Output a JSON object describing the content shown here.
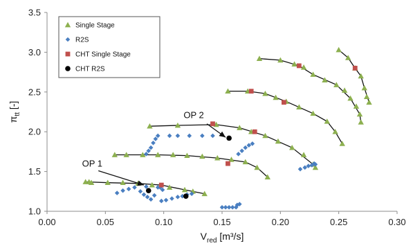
{
  "chart_data": {
    "type": "scatter",
    "title": "",
    "xlabel": {
      "base": "V",
      "sub": "red",
      "unit": " [m³/s]"
    },
    "ylabel": {
      "base": "π",
      "sub": "tt",
      "unit": " [-]"
    },
    "xlim": [
      0,
      0.3
    ],
    "ylim": [
      1.0,
      3.5
    ],
    "xticks": [
      "0.00",
      "0.05",
      "0.10",
      "0.15",
      "0.20",
      "0.25",
      "0.30"
    ],
    "yticks": [
      "1.0",
      "1.5",
      "2.0",
      "2.5",
      "3.0",
      "3.5"
    ],
    "grid": false,
    "legend_position": "top-left",
    "series": [
      {
        "name": "Single Stage",
        "marker": "triangle",
        "color": "#8db050",
        "points": [
          [
            0.033,
            1.37
          ],
          [
            0.036,
            1.37
          ],
          [
            0.038,
            1.36
          ],
          [
            0.052,
            1.36
          ],
          [
            0.065,
            1.36
          ],
          [
            0.078,
            1.35
          ],
          [
            0.09,
            1.33
          ],
          [
            0.105,
            1.3
          ],
          [
            0.118,
            1.27
          ],
          [
            0.125,
            1.25
          ],
          [
            0.135,
            1.22
          ],
          [
            0.058,
            1.71
          ],
          [
            0.068,
            1.71
          ],
          [
            0.082,
            1.71
          ],
          [
            0.095,
            1.71
          ],
          [
            0.108,
            1.71
          ],
          [
            0.12,
            1.7
          ],
          [
            0.133,
            1.69
          ],
          [
            0.146,
            1.67
          ],
          [
            0.158,
            1.65
          ],
          [
            0.17,
            1.62
          ],
          [
            0.18,
            1.55
          ],
          [
            0.189,
            1.43
          ],
          [
            0.088,
            2.07
          ],
          [
            0.112,
            2.08
          ],
          [
            0.145,
            2.09
          ],
          [
            0.165,
            2.05
          ],
          [
            0.175,
            2.0
          ],
          [
            0.187,
            1.95
          ],
          [
            0.198,
            1.88
          ],
          [
            0.21,
            1.8
          ],
          [
            0.22,
            1.71
          ],
          [
            0.228,
            1.59
          ],
          [
            0.23,
            1.55
          ],
          [
            0.155,
            2.51
          ],
          [
            0.172,
            2.51
          ],
          [
            0.187,
            2.48
          ],
          [
            0.196,
            2.43
          ],
          [
            0.205,
            2.38
          ],
          [
            0.216,
            2.31
          ],
          [
            0.228,
            2.23
          ],
          [
            0.24,
            2.13
          ],
          [
            0.247,
            2.0
          ],
          [
            0.253,
            1.85
          ],
          [
            0.182,
            2.92
          ],
          [
            0.2,
            2.9
          ],
          [
            0.212,
            2.85
          ],
          [
            0.22,
            2.81
          ],
          [
            0.228,
            2.72
          ],
          [
            0.238,
            2.65
          ],
          [
            0.248,
            2.59
          ],
          [
            0.255,
            2.52
          ],
          [
            0.26,
            2.42
          ],
          [
            0.265,
            2.32
          ],
          [
            0.268,
            2.22
          ],
          [
            0.269,
            2.12
          ],
          [
            0.25,
            3.03
          ],
          [
            0.258,
            2.93
          ],
          [
            0.264,
            2.8
          ],
          [
            0.269,
            2.7
          ],
          [
            0.272,
            2.55
          ],
          [
            0.274,
            2.44
          ],
          [
            0.276,
            2.37
          ]
        ]
      },
      {
        "name": "R2S",
        "marker": "diamond",
        "color": "#4a7fc1",
        "points": [
          [
            0.08,
            1.25
          ],
          [
            0.083,
            1.21
          ],
          [
            0.086,
            1.18
          ],
          [
            0.089,
            1.15
          ],
          [
            0.092,
            1.2
          ],
          [
            0.095,
            1.3
          ],
          [
            0.097,
            1.3
          ],
          [
            0.099,
            1.27
          ],
          [
            0.06,
            1.23
          ],
          [
            0.065,
            1.26
          ],
          [
            0.07,
            1.28
          ],
          [
            0.075,
            1.3
          ],
          [
            0.085,
            1.31
          ],
          [
            0.098,
            1.13
          ],
          [
            0.102,
            1.14
          ],
          [
            0.107,
            1.16
          ],
          [
            0.112,
            1.18
          ],
          [
            0.116,
            1.19
          ],
          [
            0.12,
            1.21
          ],
          [
            0.124,
            1.22
          ],
          [
            0.15,
            1.05
          ],
          [
            0.153,
            1.05
          ],
          [
            0.156,
            1.05
          ],
          [
            0.159,
            1.05
          ],
          [
            0.162,
            1.05
          ],
          [
            0.163,
            1.08
          ],
          [
            0.165,
            1.09
          ],
          [
            0.085,
            1.72
          ],
          [
            0.087,
            1.76
          ],
          [
            0.089,
            1.8
          ],
          [
            0.091,
            1.86
          ],
          [
            0.093,
            1.91
          ],
          [
            0.095,
            1.95
          ],
          [
            0.105,
            1.95
          ],
          [
            0.112,
            1.95
          ],
          [
            0.122,
            1.95
          ],
          [
            0.133,
            1.95
          ],
          [
            0.142,
            1.95
          ],
          [
            0.164,
            1.72
          ],
          [
            0.167,
            1.76
          ],
          [
            0.17,
            1.8
          ],
          [
            0.173,
            1.83
          ],
          [
            0.176,
            1.85
          ],
          [
            0.217,
            1.53
          ],
          [
            0.221,
            1.55
          ],
          [
            0.224,
            1.57
          ],
          [
            0.227,
            1.58
          ],
          [
            0.229,
            1.6
          ],
          [
            0.23,
            1.59
          ]
        ]
      },
      {
        "name": "CHT Single Stage",
        "marker": "square",
        "color": "#c0504d",
        "points": [
          [
            0.098,
            1.33
          ],
          [
            0.155,
            1.6
          ],
          [
            0.178,
            2.0
          ],
          [
            0.203,
            2.37
          ],
          [
            0.175,
            2.51
          ],
          [
            0.142,
            2.1
          ],
          [
            0.216,
            2.83
          ],
          [
            0.264,
            2.8
          ]
        ]
      },
      {
        "name": "CHT R2S",
        "marker": "circle",
        "color": "#000000",
        "points": [
          [
            0.087,
            1.26
          ],
          [
            0.119,
            1.19
          ],
          [
            0.156,
            1.92
          ]
        ]
      }
    ],
    "lines": [
      [
        [
          0.033,
          1.37
        ],
        [
          0.052,
          1.36
        ],
        [
          0.078,
          1.35
        ],
        [
          0.098,
          1.33
        ],
        [
          0.118,
          1.27
        ],
        [
          0.135,
          1.22
        ]
      ],
      [
        [
          0.058,
          1.71
        ],
        [
          0.095,
          1.71
        ],
        [
          0.12,
          1.7
        ],
        [
          0.146,
          1.67
        ],
        [
          0.17,
          1.62
        ],
        [
          0.18,
          1.55
        ],
        [
          0.189,
          1.43
        ]
      ],
      [
        [
          0.088,
          2.07
        ],
        [
          0.112,
          2.08
        ],
        [
          0.145,
          2.09
        ],
        [
          0.165,
          2.05
        ],
        [
          0.187,
          1.95
        ],
        [
          0.21,
          1.8
        ],
        [
          0.228,
          1.59
        ],
        [
          0.23,
          1.55
        ]
      ],
      [
        [
          0.155,
          2.51
        ],
        [
          0.172,
          2.51
        ],
        [
          0.187,
          2.48
        ],
        [
          0.205,
          2.38
        ],
        [
          0.228,
          2.23
        ],
        [
          0.24,
          2.13
        ],
        [
          0.247,
          2.0
        ],
        [
          0.253,
          1.85
        ]
      ],
      [
        [
          0.182,
          2.92
        ],
        [
          0.2,
          2.9
        ],
        [
          0.216,
          2.83
        ],
        [
          0.228,
          2.72
        ],
        [
          0.248,
          2.59
        ],
        [
          0.26,
          2.42
        ],
        [
          0.268,
          2.22
        ],
        [
          0.269,
          2.12
        ]
      ],
      [
        [
          0.25,
          3.03
        ],
        [
          0.258,
          2.93
        ],
        [
          0.264,
          2.8
        ],
        [
          0.269,
          2.7
        ],
        [
          0.272,
          2.55
        ],
        [
          0.276,
          2.37
        ]
      ]
    ],
    "annotations": [
      {
        "text": "OP 1",
        "label_at": [
          0.03,
          1.56
        ],
        "arrow_from": [
          0.044,
          1.51
        ],
        "arrow_to": [
          0.083,
          1.33
        ]
      },
      {
        "text": "OP 2",
        "label_at": [
          0.117,
          2.17
        ],
        "arrow_from": [
          0.137,
          2.1
        ],
        "arrow_to": [
          0.153,
          1.93
        ]
      }
    ]
  }
}
